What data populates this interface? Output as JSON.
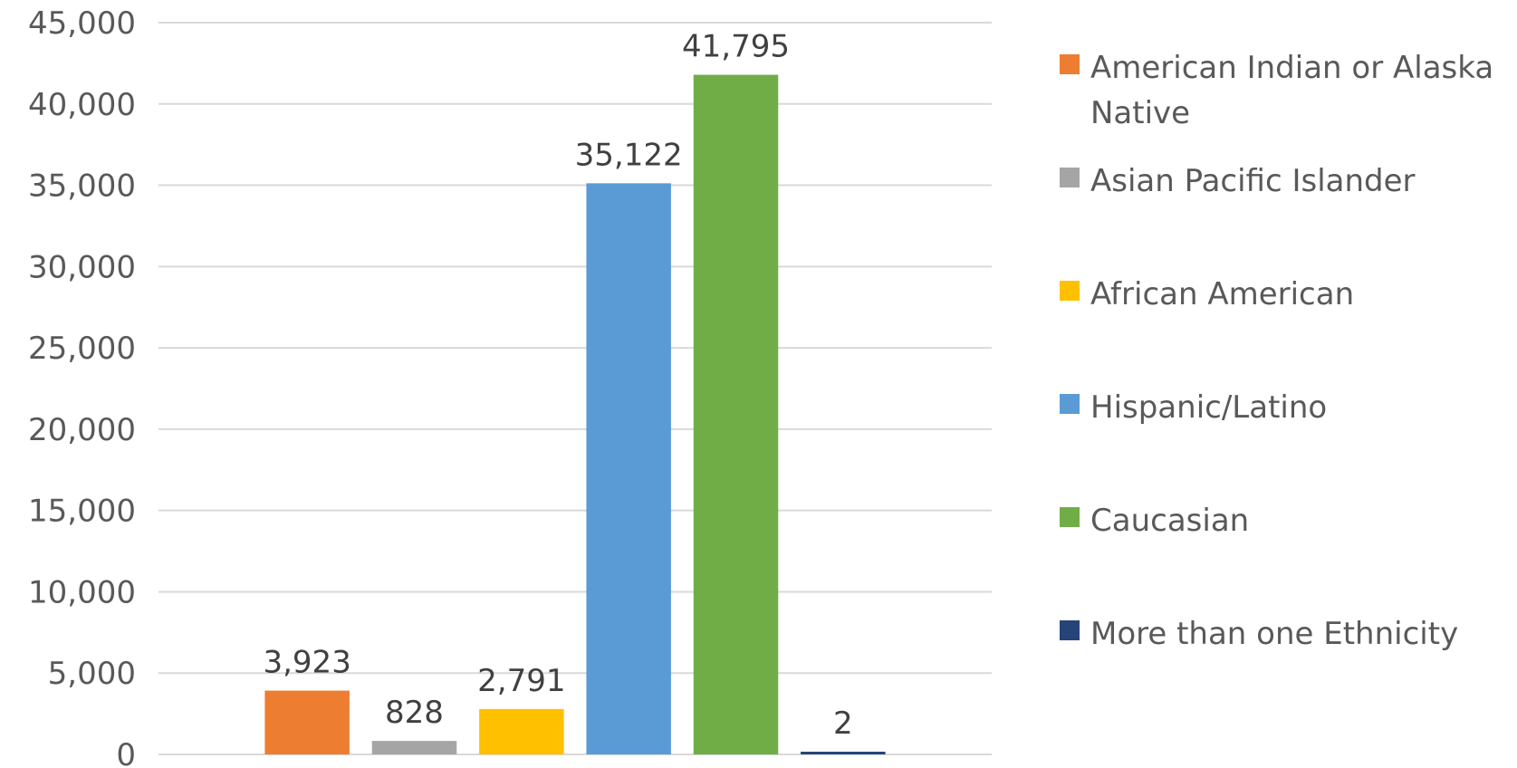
{
  "chart_data": {
    "type": "bar",
    "title": "",
    "xlabel": "",
    "ylabel": "",
    "ylim": [
      0,
      45000
    ],
    "y_ticks": [
      0,
      5000,
      10000,
      15000,
      20000,
      25000,
      30000,
      35000,
      40000,
      45000
    ],
    "y_tick_labels": [
      "0",
      "5,000",
      "10,000",
      "15,000",
      "20,000",
      "25,000",
      "30,000",
      "35,000",
      "40,000",
      "45,000"
    ],
    "grid": true,
    "legend_position": "right",
    "series": [
      {
        "name": "American Indian or Alaska Native",
        "value": 3923,
        "label": "3,923",
        "color": "#ED7D31"
      },
      {
        "name": "Asian Pacific Islander",
        "value": 828,
        "label": "828",
        "color": "#A5A5A5"
      },
      {
        "name": "African American",
        "value": 2791,
        "label": "2,791",
        "color": "#FFC000"
      },
      {
        "name": "Hispanic/Latino",
        "value": 35122,
        "label": "35,122",
        "color": "#5B9BD5"
      },
      {
        "name": "Caucasian",
        "value": 41795,
        "label": "41,795",
        "color": "#70AD47"
      },
      {
        "name": "More than one Ethnicity",
        "value": 2,
        "label": "2",
        "color": "#264478"
      }
    ]
  }
}
